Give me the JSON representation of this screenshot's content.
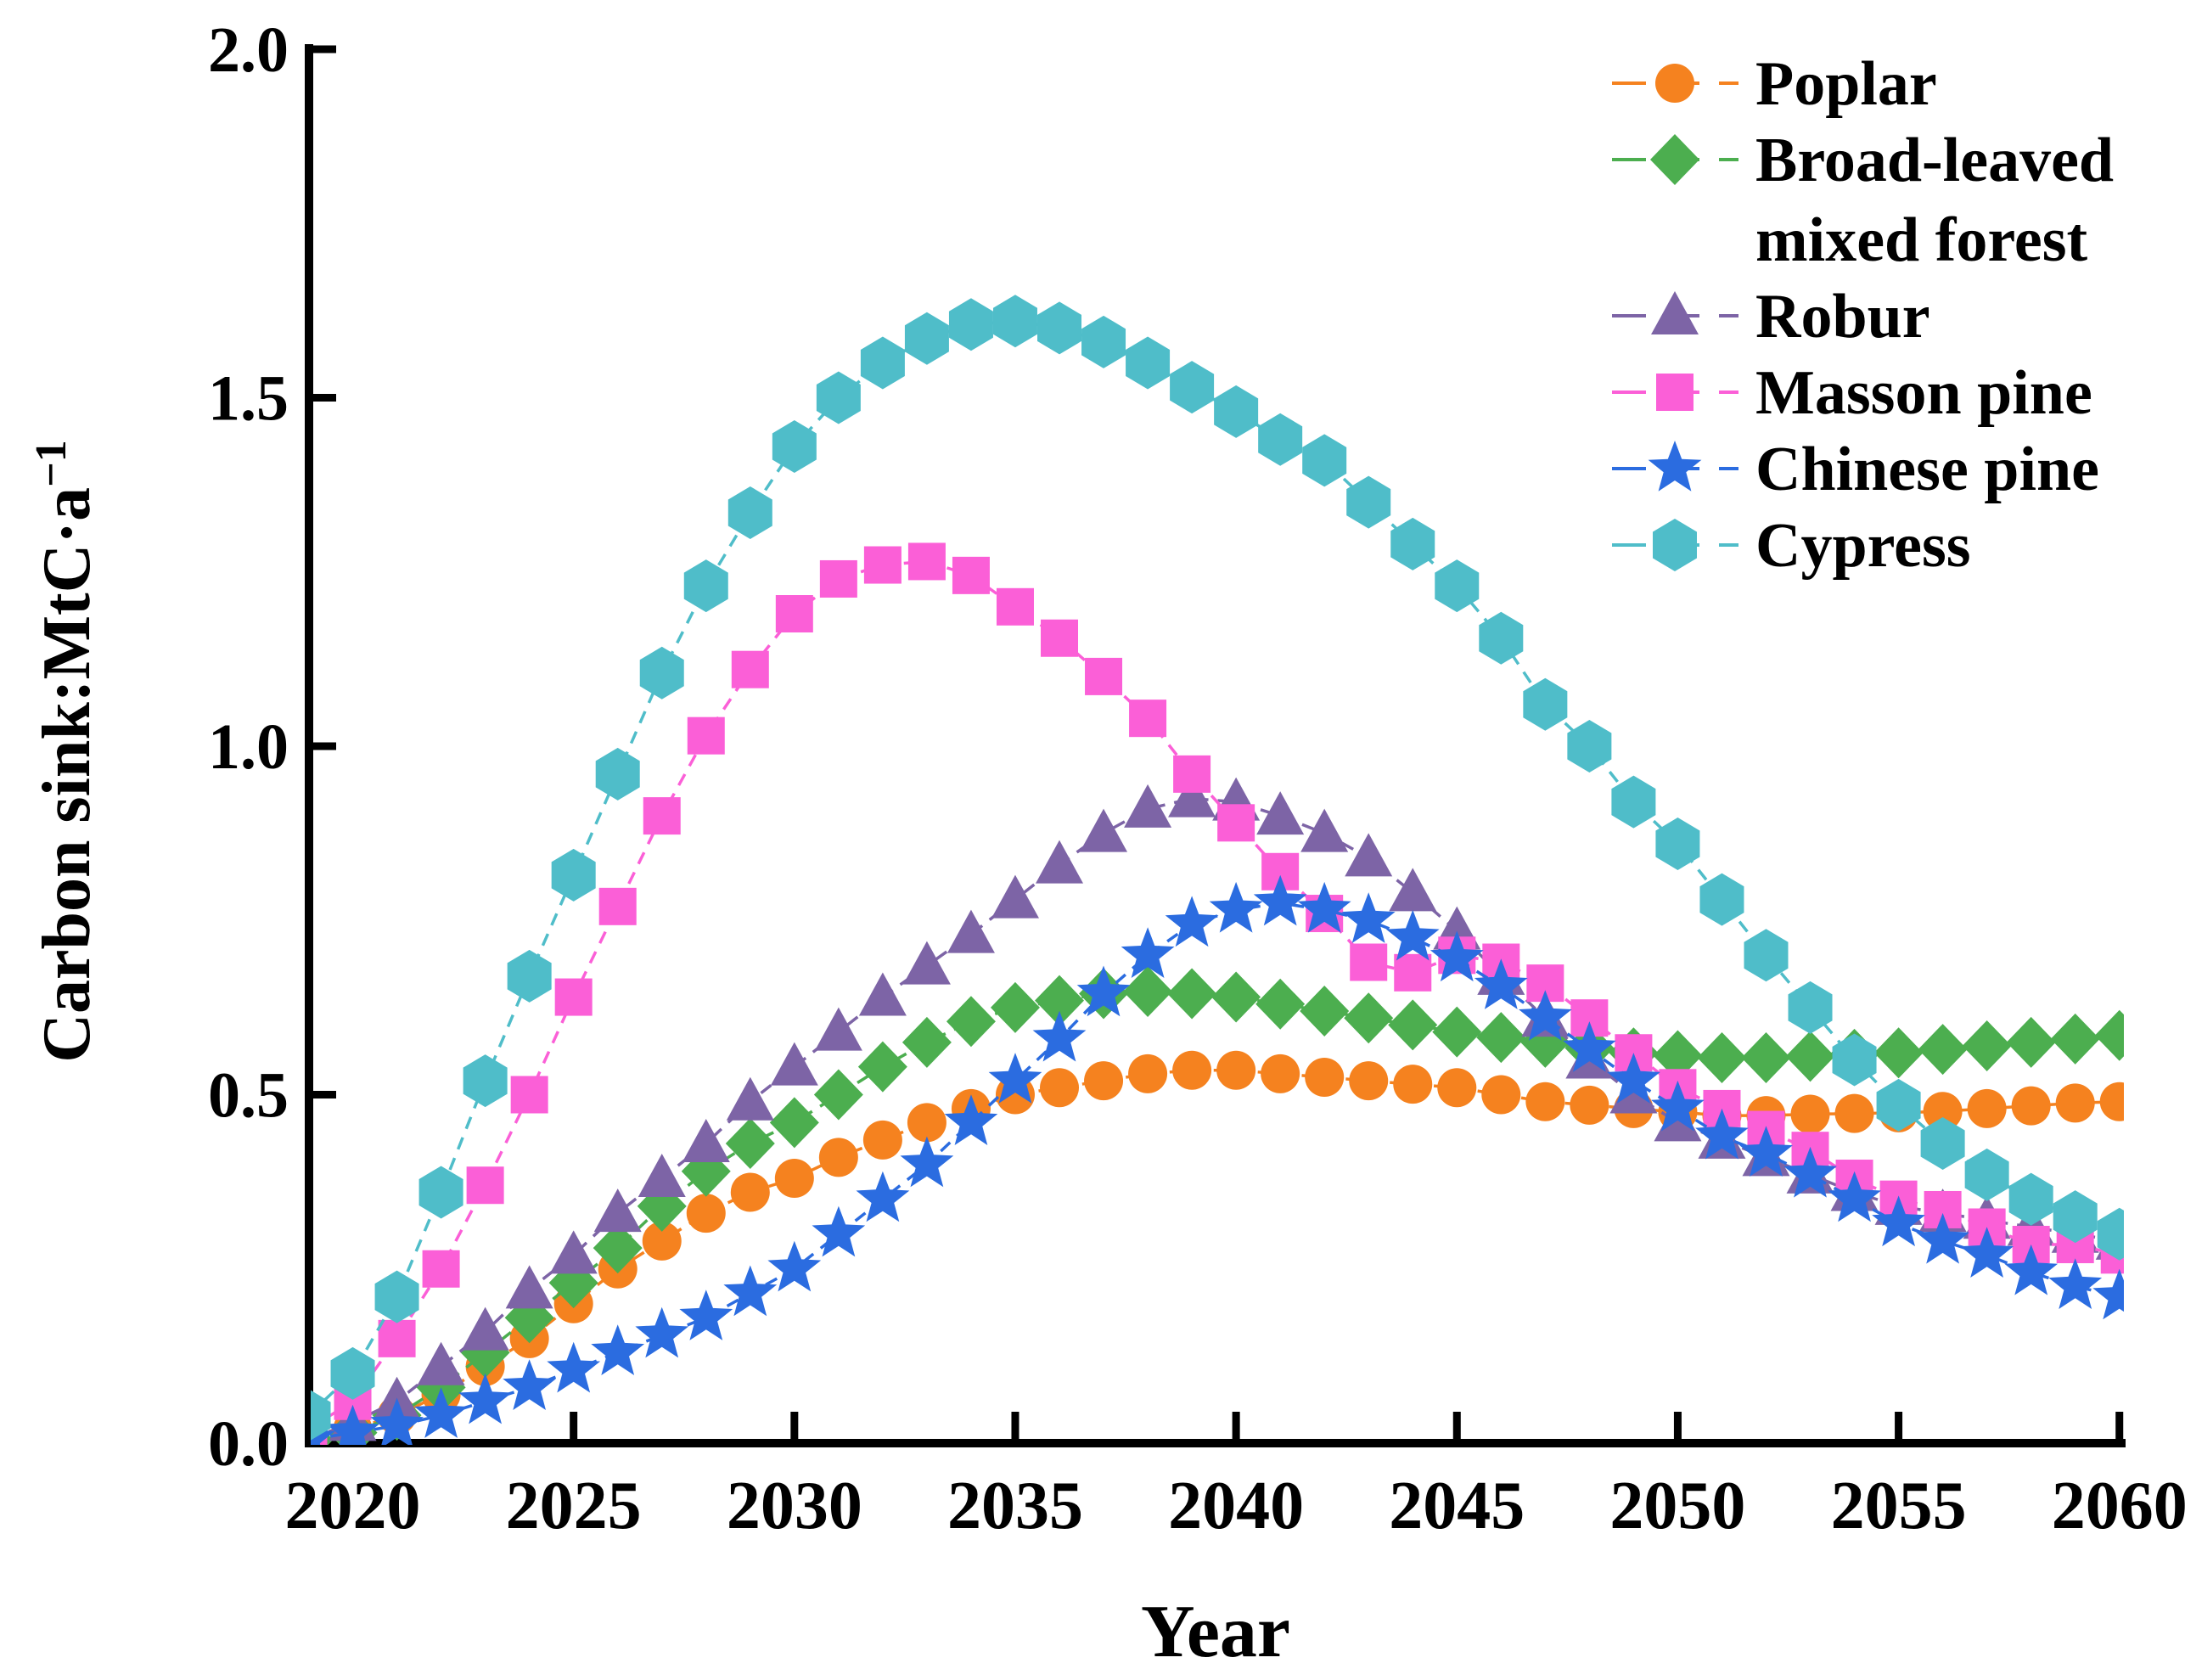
{
  "figure": {
    "x_axis": {
      "label": "Year",
      "tick_labels": [
        "2020",
        "2025",
        "2030",
        "2035",
        "2040",
        "2045",
        "2050",
        "2055",
        "2060"
      ]
    },
    "y_axis": {
      "label_prefix": "Carbon sink:MtC·a",
      "label_superscript": "−1",
      "tick_labels": [
        "0.0",
        "0.5",
        "1.0",
        "1.5",
        "2.0"
      ]
    }
  },
  "legend": {
    "items": [
      {
        "label_lines": [
          "Poplar"
        ],
        "marker": "circle",
        "color": "#F5821F"
      },
      {
        "label_lines": [
          "Broad-leaved",
          "mixed forest"
        ],
        "marker": "diamond",
        "color": "#4CAE4F"
      },
      {
        "label_lines": [
          "Robur"
        ],
        "marker": "triangle",
        "color": "#7D64A6"
      },
      {
        "label_lines": [
          "Masson pine"
        ],
        "marker": "square",
        "color": "#FB5FD7"
      },
      {
        "label_lines": [
          "Chinese pine"
        ],
        "marker": "star",
        "color": "#2B6CE0"
      },
      {
        "label_lines": [
          "Cypress"
        ],
        "marker": "hexagon",
        "color": "#4FBDC9"
      }
    ]
  },
  "chart_data": {
    "type": "line",
    "title": "",
    "xlabel": "Year",
    "ylabel": "Carbon sink:MtC·a⁻¹",
    "xlim": [
      2019,
      2060
    ],
    "ylim": [
      0,
      2
    ],
    "xticks": [
      2020,
      2025,
      2030,
      2035,
      2040,
      2045,
      2050,
      2055,
      2060
    ],
    "yticks": [
      0,
      0.5,
      1,
      1.5,
      2
    ],
    "grid": false,
    "legend_position": "upper right",
    "x": [
      2019,
      2020,
      2021,
      2022,
      2023,
      2024,
      2025,
      2026,
      2027,
      2028,
      2029,
      2030,
      2031,
      2032,
      2033,
      2034,
      2035,
      2036,
      2037,
      2038,
      2039,
      2040,
      2041,
      2042,
      2043,
      2044,
      2045,
      2046,
      2047,
      2048,
      2049,
      2050,
      2051,
      2052,
      2053,
      2054,
      2055,
      2056,
      2057,
      2058,
      2059,
      2060
    ],
    "series": [
      {
        "name": "Poplar",
        "marker": "circle",
        "color": "#F5821F",
        "values": [
          0.01,
          0.02,
          0.04,
          0.07,
          0.11,
          0.15,
          0.2,
          0.25,
          0.29,
          0.33,
          0.36,
          0.38,
          0.41,
          0.435,
          0.46,
          0.48,
          0.5,
          0.51,
          0.52,
          0.53,
          0.535,
          0.535,
          0.53,
          0.525,
          0.52,
          0.515,
          0.51,
          0.5,
          0.49,
          0.485,
          0.48,
          0.475,
          0.47,
          0.47,
          0.472,
          0.473,
          0.474,
          0.476,
          0.48,
          0.484,
          0.488,
          0.49
        ]
      },
      {
        "name": "Broad-leaved mixed forest",
        "marker": "diamond",
        "color": "#4CAE4F",
        "values": [
          0.005,
          0.015,
          0.04,
          0.08,
          0.13,
          0.18,
          0.23,
          0.28,
          0.34,
          0.39,
          0.43,
          0.46,
          0.5,
          0.54,
          0.575,
          0.605,
          0.625,
          0.635,
          0.645,
          0.648,
          0.645,
          0.64,
          0.63,
          0.62,
          0.61,
          0.6,
          0.59,
          0.582,
          0.575,
          0.567,
          0.56,
          0.556,
          0.553,
          0.553,
          0.555,
          0.558,
          0.56,
          0.565,
          0.57,
          0.575,
          0.58,
          0.585
        ]
      },
      {
        "name": "Robur",
        "marker": "triangle",
        "color": "#7D64A6",
        "values": [
          0.005,
          0.03,
          0.06,
          0.11,
          0.16,
          0.22,
          0.27,
          0.33,
          0.38,
          0.43,
          0.49,
          0.54,
          0.59,
          0.64,
          0.685,
          0.73,
          0.78,
          0.83,
          0.875,
          0.91,
          0.925,
          0.92,
          0.9,
          0.875,
          0.84,
          0.79,
          0.735,
          0.67,
          0.61,
          0.55,
          0.5,
          0.46,
          0.435,
          0.41,
          0.385,
          0.36,
          0.34,
          0.33,
          0.32,
          0.31,
          0.3,
          0.29
        ]
      },
      {
        "name": "Masson pine",
        "marker": "square",
        "color": "#FB5FD7",
        "values": [
          0.02,
          0.06,
          0.15,
          0.25,
          0.37,
          0.5,
          0.64,
          0.77,
          0.9,
          1.015,
          1.11,
          1.19,
          1.24,
          1.26,
          1.265,
          1.245,
          1.2,
          1.155,
          1.1,
          1.04,
          0.96,
          0.89,
          0.82,
          0.76,
          0.69,
          0.675,
          0.7,
          0.69,
          0.66,
          0.61,
          0.56,
          0.51,
          0.48,
          0.45,
          0.42,
          0.38,
          0.35,
          0.335,
          0.31,
          0.285,
          0.285,
          0.27
        ]
      },
      {
        "name": "Chinese pine",
        "marker": "star",
        "color": "#2B6CE0",
        "values": [
          0.005,
          0.015,
          0.025,
          0.04,
          0.06,
          0.08,
          0.105,
          0.13,
          0.155,
          0.18,
          0.215,
          0.25,
          0.3,
          0.35,
          0.4,
          0.46,
          0.52,
          0.58,
          0.645,
          0.7,
          0.745,
          0.765,
          0.775,
          0.765,
          0.75,
          0.725,
          0.695,
          0.655,
          0.61,
          0.565,
          0.52,
          0.48,
          0.44,
          0.415,
          0.385,
          0.35,
          0.315,
          0.29,
          0.27,
          0.245,
          0.225,
          0.21
        ]
      },
      {
        "name": "Cypress",
        "marker": "hexagon",
        "color": "#4FBDC9",
        "values": [
          0.04,
          0.1,
          0.21,
          0.36,
          0.52,
          0.67,
          0.815,
          0.96,
          1.105,
          1.23,
          1.335,
          1.43,
          1.5,
          1.55,
          1.585,
          1.605,
          1.61,
          1.6,
          1.58,
          1.55,
          1.515,
          1.48,
          1.44,
          1.41,
          1.35,
          1.29,
          1.23,
          1.155,
          1.06,
          1.0,
          0.92,
          0.86,
          0.78,
          0.7,
          0.625,
          0.55,
          0.485,
          0.43,
          0.385,
          0.35,
          0.325,
          0.3
        ]
      }
    ]
  }
}
